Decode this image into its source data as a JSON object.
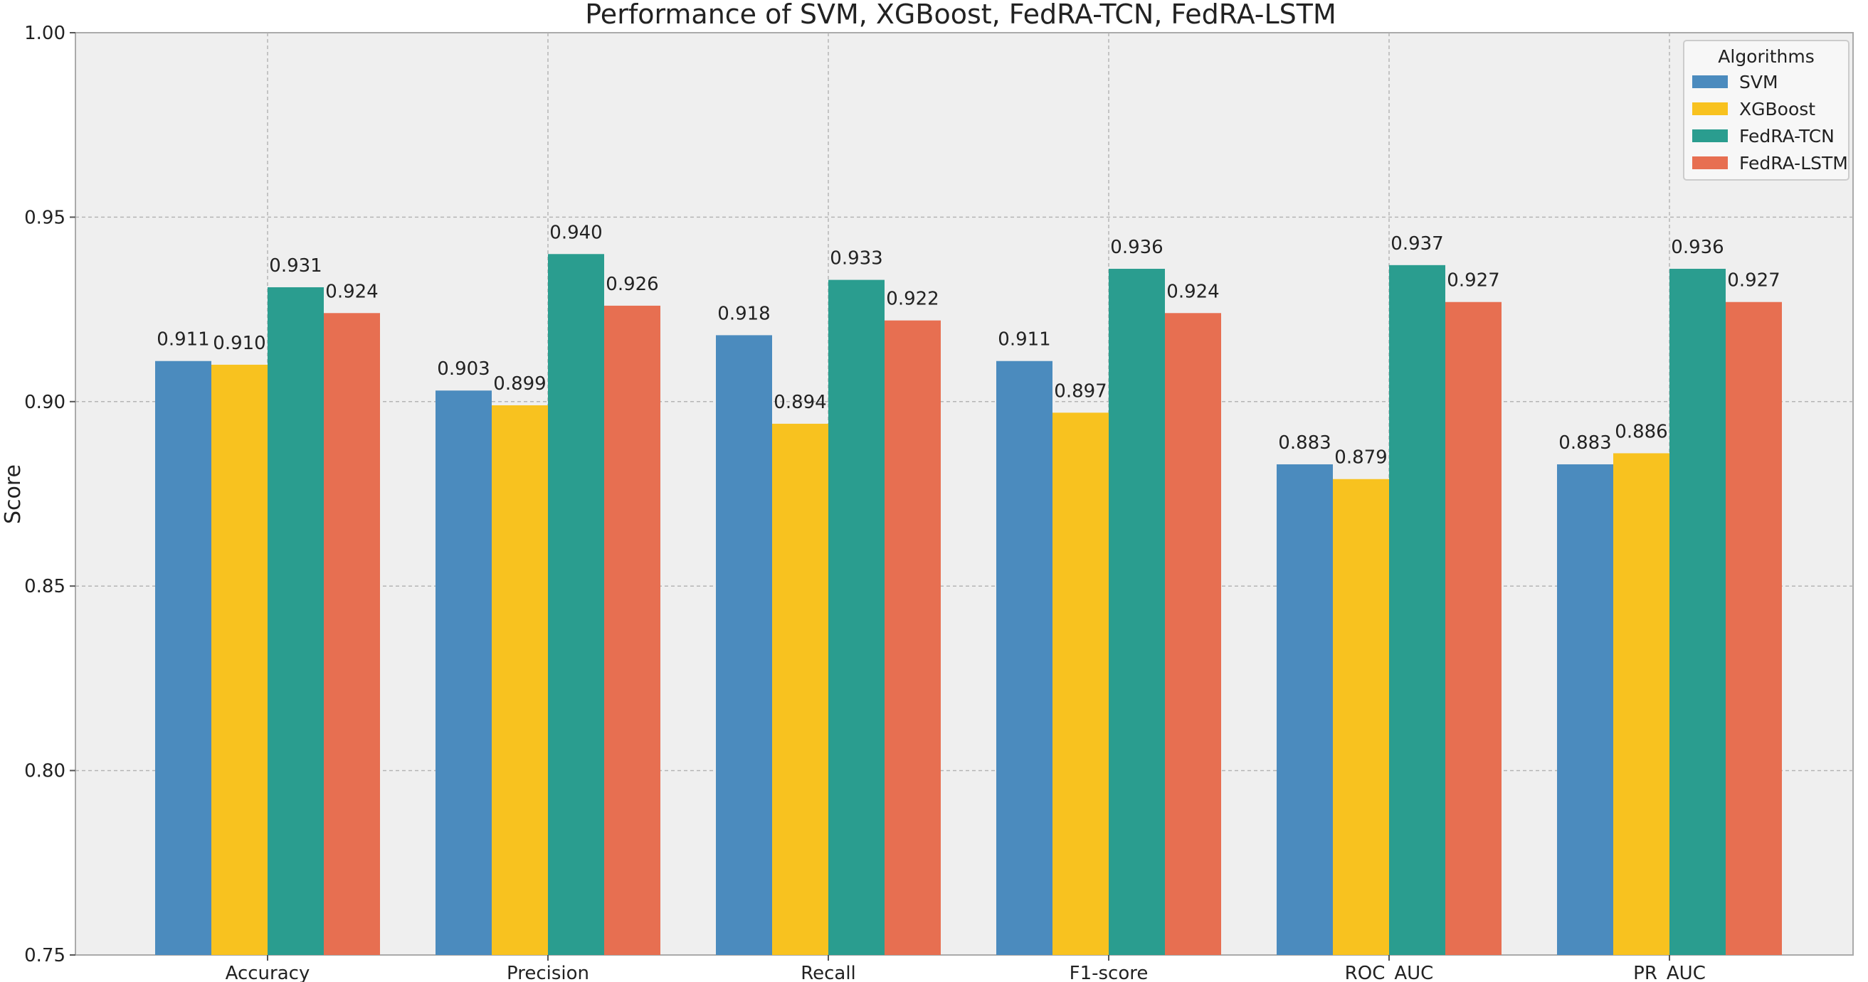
{
  "chart_data": {
    "type": "bar",
    "title": "Performance of SVM, XGBoost, FedRA-TCN, FedRA-LSTM",
    "xlabel": "",
    "ylabel": "Score",
    "ylim": [
      0.75,
      1.0
    ],
    "yticks": [
      "0.75",
      "0.80",
      "0.85",
      "0.90",
      "0.95",
      "1.00"
    ],
    "grid": true,
    "legend": {
      "title": "Algorithms",
      "placement": "top-right"
    },
    "categories": [
      "Accuracy",
      "Precision",
      "Recall",
      "F1-score",
      "ROC_AUC",
      "PR_AUC"
    ],
    "series": [
      {
        "name": "SVM",
        "color": "#4B8BBE",
        "values": [
          0.911,
          0.903,
          0.918,
          0.911,
          0.883,
          0.883
        ]
      },
      {
        "name": "XGBoost",
        "color": "#F8C21F",
        "values": [
          0.91,
          0.899,
          0.894,
          0.897,
          0.879,
          0.886
        ]
      },
      {
        "name": "FedRA-TCN",
        "color": "#2A9D8F",
        "values": [
          0.931,
          0.94,
          0.933,
          0.936,
          0.937,
          0.936
        ]
      },
      {
        "name": "FedRA-LSTM",
        "color": "#E76F51",
        "values": [
          0.924,
          0.926,
          0.922,
          0.924,
          0.927,
          0.927
        ]
      }
    ]
  }
}
